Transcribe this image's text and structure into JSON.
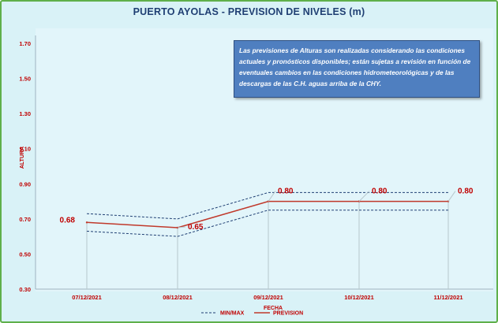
{
  "chart_data": {
    "type": "line",
    "title": "PUERTO AYOLAS - PREVISION DE NIVELES (m)",
    "xlabel": "FECHA",
    "ylabel": "ALTURA",
    "categories": [
      "07/12/2021",
      "08/12/2021",
      "09/12/2021",
      "10/12/2021",
      "11/12/2021"
    ],
    "ylim": [
      0.3,
      1.7
    ],
    "yticks": [
      "0.30",
      "0.50",
      "0.70",
      "0.90",
      "1.10",
      "1.30",
      "1.50",
      "1.70"
    ],
    "series": [
      {
        "name": "PREVISION",
        "values": [
          0.68,
          0.65,
          0.8,
          0.8,
          0.8
        ],
        "labels": [
          "0.68",
          "0.65",
          "0.80",
          "0.80",
          "0.80"
        ],
        "color": "#c0392b"
      },
      {
        "name": "MIN/MAX",
        "upper": [
          0.73,
          0.7,
          0.85,
          0.85,
          0.85
        ],
        "lower": [
          0.63,
          0.6,
          0.75,
          0.75,
          0.75
        ],
        "color": "#1f3f73"
      }
    ],
    "grid": false,
    "legend_position": "bottom"
  },
  "note": "Las previsiones de Alturas son realizadas considerando las condiciones actuales y pronósticos disponibles; están sujetas a revisión en función de eventuales cambios en las condiciones hidrometeorológicas y de las descargas de las C.H. aguas arriba de la CHY.",
  "colors": {
    "border": "#5fb04a",
    "background": "#d9f2f7",
    "note_box": "#4f7fc0",
    "axis_text": "#c00000"
  }
}
